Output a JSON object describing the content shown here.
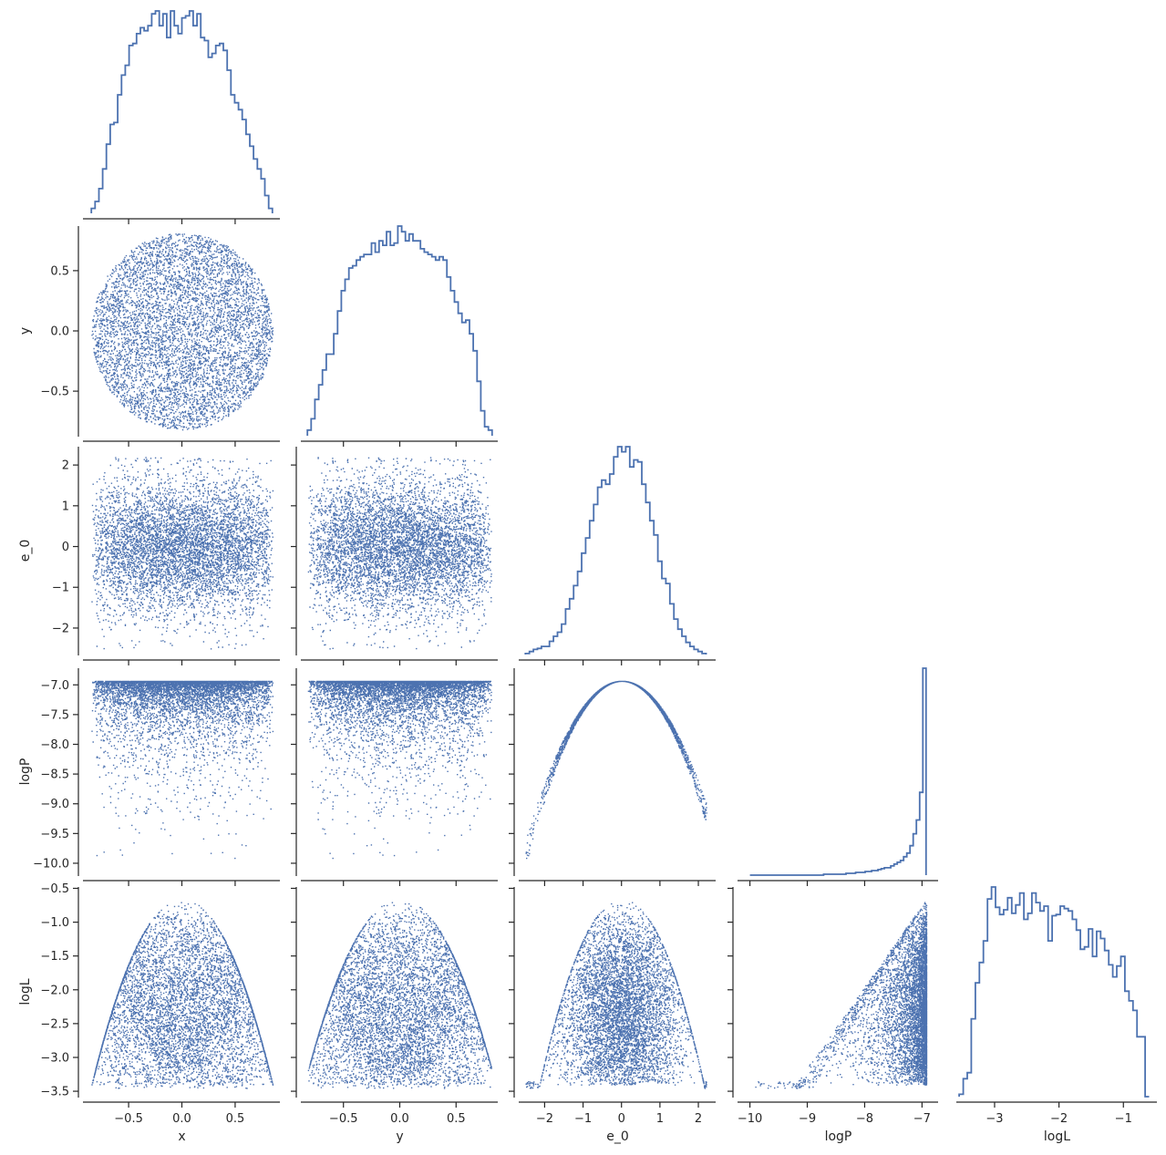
{
  "chart_data": {
    "type": "scatter",
    "kind": "corner pair plot",
    "variables": [
      "x",
      "y",
      "e_0",
      "logP",
      "logL"
    ],
    "axis_labels": {
      "x": "x",
      "y": "y",
      "e_0": "e_0",
      "logP": "logP",
      "logL": "logL"
    },
    "color": "#4c72b0",
    "grid": false,
    "ticks": {
      "x": [
        -0.5,
        0.0,
        0.5
      ],
      "y": [
        -0.5,
        0.0,
        0.5
      ],
      "e_0": [
        -2,
        -1,
        0,
        1,
        2
      ],
      "logP": [
        -10.0,
        -9.5,
        -9.0,
        -8.5,
        -8.0,
        -7.5,
        -7.0
      ],
      "logP_bottom": [
        -10,
        -9,
        -8,
        -7
      ],
      "logL": [
        -3.5,
        -3.0,
        -2.5,
        -2.0,
        -1.5,
        -1.0,
        -0.5
      ],
      "logL_bottom": [
        -3,
        -2,
        -1
      ]
    },
    "tick_labels": {
      "x": [
        "−0.5",
        "0.0",
        "0.5"
      ],
      "y": [
        "−0.5",
        "0.0",
        "0.5"
      ],
      "e_0": [
        "−2",
        "−1",
        "0",
        "1",
        "2"
      ],
      "logP": [
        "−10.0",
        "−9.5",
        "−9.0",
        "−8.5",
        "−8.0",
        "−7.5",
        "−7.0"
      ],
      "logP_bottom": [
        "−10",
        "−9",
        "−8",
        "−7"
      ],
      "logL": [
        "−3.5",
        "−3.0",
        "−2.5",
        "−2.0",
        "−1.5",
        "−1.0",
        "−0.5"
      ],
      "logL_bottom": [
        "−3",
        "−2",
        "−1"
      ]
    },
    "ranges": {
      "x": [
        -0.92,
        0.92
      ],
      "y": [
        -0.87,
        0.87
      ],
      "e_0": [
        -2.65,
        2.45
      ],
      "logP": [
        -10.2,
        -6.72
      ],
      "logL": [
        -3.58,
        -0.48
      ]
    },
    "histograms": {
      "x": {
        "range": [
          -0.85,
          0.85
        ],
        "counts": [
          5,
          12,
          25,
          45,
          70,
          90,
          92,
          120,
          140,
          150,
          170,
          172,
          182,
          188,
          185,
          190,
          202,
          205,
          190,
          202,
          178,
          205,
          190,
          182,
          198,
          200,
          205,
          190,
          202,
          178,
          175,
          158,
          162,
          170,
          172,
          165,
          145,
          120,
          112,
          105,
          95,
          80,
          68,
          55,
          45,
          35,
          18,
          5
        ]
      },
      "y": {
        "range": [
          -0.82,
          0.82
        ],
        "counts": [
          5,
          15,
          32,
          45,
          58,
          72,
          72,
          90,
          110,
          128,
          138,
          148,
          150,
          155,
          158,
          160,
          160,
          170,
          162,
          172,
          168,
          180,
          168,
          170,
          185,
          180,
          172,
          178,
          172,
          172,
          165,
          162,
          160,
          158,
          155,
          158,
          155,
          140,
          128,
          118,
          108,
          100,
          102,
          90,
          75,
          48,
          22,
          8,
          5
        ]
      },
      "e_0": {
        "range": [
          -2.5,
          2.2
        ],
        "counts": [
          1,
          3,
          5,
          6,
          8,
          8,
          13,
          18,
          22,
          30,
          45,
          55,
          68,
          82,
          100,
          115,
          132,
          148,
          165,
          172,
          168,
          178,
          195,
          205,
          200,
          205,
          185,
          192,
          190,
          168,
          150,
          132,
          118,
          92,
          75,
          70,
          50,
          35,
          25,
          18,
          12,
          8,
          5,
          3,
          1
        ]
      },
      "logP": {
        "range": [
          -10.0,
          -6.93
        ],
        "counts": [
          0,
          0,
          0,
          0,
          0,
          0,
          0,
          0,
          0,
          0,
          0,
          0,
          0,
          0,
          0,
          0,
          0,
          0,
          0,
          0,
          0,
          0,
          0,
          1,
          1,
          1,
          1,
          1,
          1,
          1,
          2,
          2,
          2,
          3,
          3,
          3,
          4,
          4,
          5,
          5,
          6,
          7,
          8,
          8,
          10,
          12,
          14,
          16,
          20,
          24,
          32,
          45,
          60,
          90,
          225
        ]
      },
      "logL": {
        "range": [
          -3.55,
          -0.6
        ],
        "counts": [
          2,
          15,
          20,
          65,
          95,
          112,
          130,
          165,
          175,
          158,
          152,
          156,
          166,
          153,
          160,
          170,
          148,
          153,
          170,
          162,
          155,
          159,
          130,
          151,
          152,
          159,
          157,
          155,
          148,
          139,
          123,
          125,
          140,
          117,
          138,
          132,
          122,
          110,
          100,
          109,
          117,
          88,
          80,
          72,
          50,
          50,
          0
        ]
      }
    },
    "scatter": [
      {
        "xvar": "x",
        "yvar": "y",
        "relation": "uniform disk of radius ~0.85"
      },
      {
        "xvar": "x",
        "yvar": "e_0",
        "relation": "independent normal"
      },
      {
        "xvar": "y",
        "yvar": "e_0",
        "relation": "independent normal"
      },
      {
        "xvar": "x",
        "yvar": "logP",
        "relation": "logP = -6.93 - 0.5 * e_0^2"
      },
      {
        "xvar": "y",
        "yvar": "logP",
        "relation": "logP = -6.93 - 0.5 * e_0^2"
      },
      {
        "xvar": "e_0",
        "yvar": "logP",
        "relation": "downward parabola peaking at -6.93"
      },
      {
        "xvar": "x",
        "yvar": "logL",
        "relation": "logL <= -0.65 - 3.8 * x^2"
      },
      {
        "xvar": "y",
        "yvar": "logL",
        "relation": "logL <= -0.65 - 3.8 * y^2"
      },
      {
        "xvar": "e_0",
        "yvar": "logL",
        "relation": "logL <= -0.65 - 0.6 * e_0^2"
      },
      {
        "xvar": "logP",
        "yvar": "logL",
        "relation": "logL <= logP + 6.3 (upper wedge)"
      }
    ]
  }
}
